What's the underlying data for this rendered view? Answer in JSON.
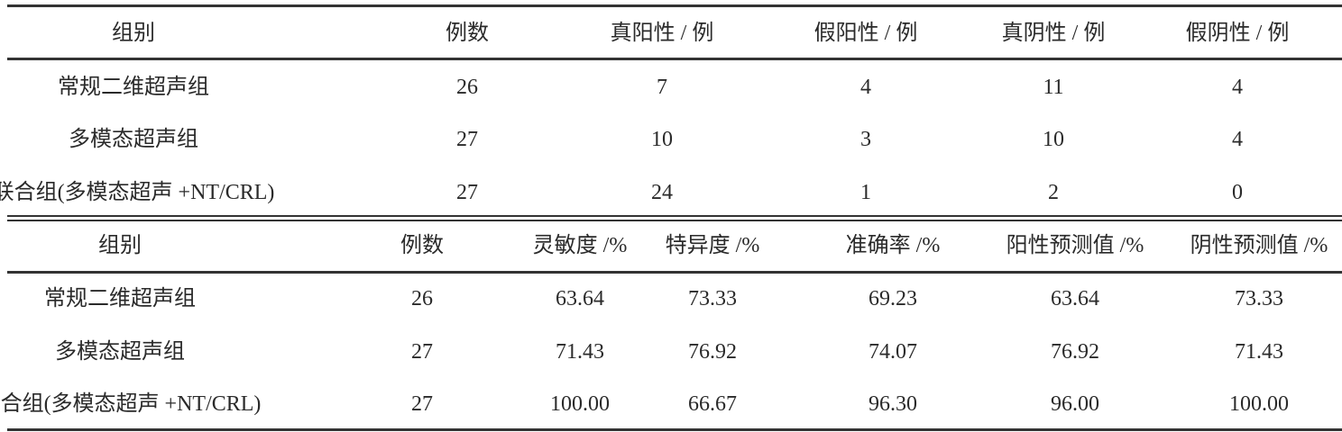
{
  "table1": {
    "headers": [
      "组别",
      "例数",
      "真阳性 / 例",
      "假阳性 / 例",
      "真阴性 / 例",
      "假阴性 / 例"
    ],
    "rows": [
      [
        "常规二维超声组",
        "26",
        "7",
        "4",
        "11",
        "4"
      ],
      [
        "多模态超声组",
        "27",
        "10",
        "3",
        "10",
        "4"
      ],
      [
        "联合组(多模态超声 +NT/CRL)",
        "27",
        "24",
        "1",
        "2",
        "0"
      ]
    ]
  },
  "table2": {
    "headers": [
      "组别",
      "例数",
      "灵敏度 /%",
      "特异度 /%",
      "准确率 /%",
      "阳性预测值 /%",
      "阴性预测值 /%"
    ],
    "rows": [
      [
        "常规二维超声组",
        "26",
        "63.64",
        "73.33",
        "69.23",
        "63.64",
        "73.33"
      ],
      [
        "多模态超声组",
        "27",
        "71.43",
        "76.92",
        "74.07",
        "76.92",
        "71.43"
      ],
      [
        "联合组(多模态超声 +NT/CRL)",
        "27",
        "100.00",
        "66.67",
        "96.30",
        "96.00",
        "100.00"
      ]
    ]
  }
}
